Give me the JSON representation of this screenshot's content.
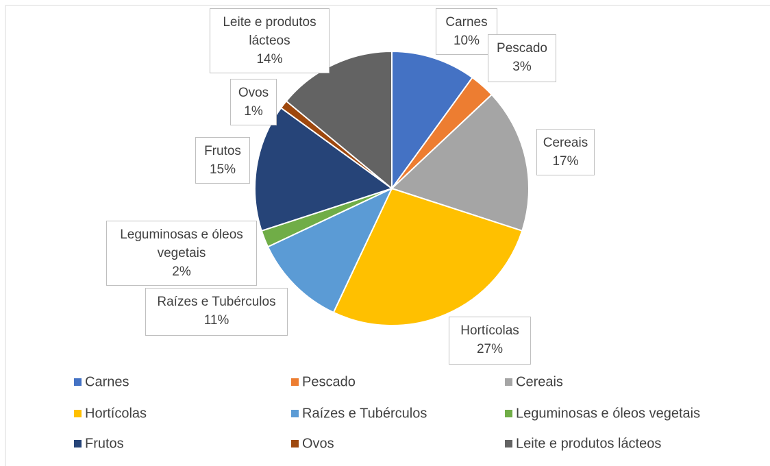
{
  "chart_data": {
    "type": "pie",
    "categories": [
      "Carnes",
      "Pescado",
      "Cereais",
      "Hortícolas",
      "Raízes e Tubérculos",
      "Leguminosas e óleos vegetais",
      "Frutos",
      "Ovos",
      "Leite e produtos lácteos"
    ],
    "values": [
      10,
      3,
      17,
      27,
      11,
      2,
      15,
      1,
      14
    ],
    "value_labels": [
      "10%",
      "3%",
      "17%",
      "27%",
      "11%",
      "2%",
      "15%",
      "1%",
      "14%"
    ],
    "colors": [
      "#4472c4",
      "#ed7d31",
      "#a5a5a5",
      "#ffc000",
      "#5b9bd5",
      "#70ad47",
      "#264478",
      "#9e480e",
      "#636363"
    ],
    "legend": "bottom"
  }
}
